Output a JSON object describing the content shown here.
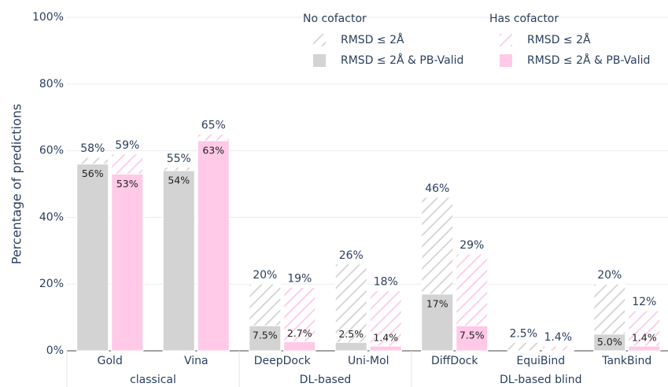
{
  "chart_data": {
    "type": "overlaid_bar",
    "y_label": "Percentage of predictions",
    "categories": [
      "Gold",
      "Vina",
      "DeepDock",
      "Uni-Mol",
      "DiffDock",
      "EquiBind",
      "TankBind"
    ],
    "category_groups": [
      {
        "label": "classical",
        "count": 2
      },
      {
        "label": "DL-based",
        "count": 2
      },
      {
        "label": "DL-based blind",
        "count": 3
      }
    ],
    "ylim": [
      0,
      100
    ],
    "yticks": [
      {
        "value": 0,
        "label": "0%"
      },
      {
        "value": 20,
        "label": "20%"
      },
      {
        "value": 40,
        "label": "40%"
      },
      {
        "value": 60,
        "label": "60%"
      },
      {
        "value": 80,
        "label": "80%"
      },
      {
        "value": 100,
        "label": "100%"
      }
    ],
    "grid": true,
    "series_groups": [
      {
        "name": "No cofactor",
        "color": "#d3d3d3",
        "series": [
          {
            "name": "RMSD ≤ 2Å",
            "style": "hatched",
            "values": [
              58,
              55,
              20,
              26,
              46,
              2.5,
              20
            ],
            "value_labels": [
              "58%",
              "55%",
              "20%",
              "26%",
              "46%",
              "2.5%",
              "20%"
            ]
          },
          {
            "name": "RMSD ≤ 2Å & PB-Valid",
            "style": "solid",
            "values": [
              56,
              54,
              7.5,
              2.5,
              17,
              0,
              5.0
            ],
            "value_labels": [
              "56%",
              "54%",
              "7.5%",
              "2.5%",
              "17%",
              null,
              "5.0%"
            ]
          }
        ]
      },
      {
        "name": "Has cofactor",
        "color": "#ffc9e7",
        "series": [
          {
            "name": "RMSD ≤ 2Å",
            "style": "hatched",
            "values": [
              59,
              65,
              19,
              18,
              29,
              1.4,
              12
            ],
            "value_labels": [
              "59%",
              "65%",
              "19%",
              "18%",
              "29%",
              "1.4%",
              "12%"
            ]
          },
          {
            "name": "RMSD ≤ 2Å & PB-Valid",
            "style": "solid",
            "values": [
              53,
              63,
              2.7,
              1.4,
              7.5,
              0,
              1.4
            ],
            "value_labels": [
              "53%",
              "63%",
              "2.7%",
              "1.4%",
              "7.5%",
              null,
              "1.4%"
            ]
          }
        ]
      }
    ]
  }
}
